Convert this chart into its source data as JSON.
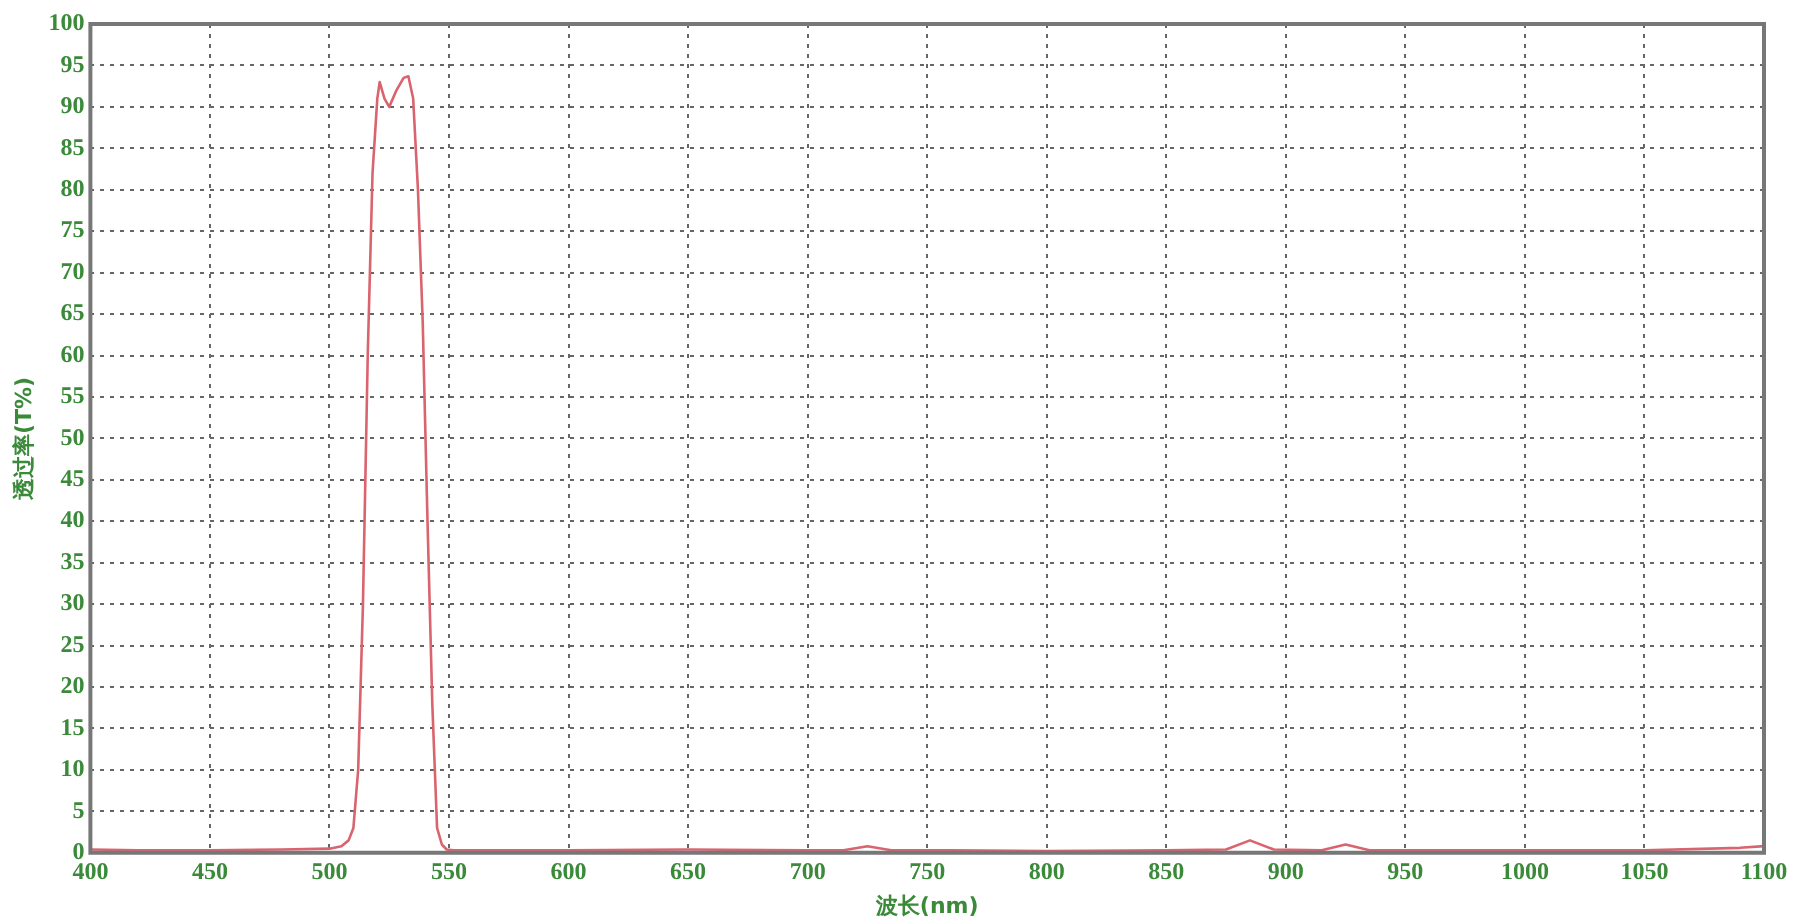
{
  "chart_data": {
    "type": "line",
    "xlabel": "波长(nm)",
    "ylabel": "透过率(T%)",
    "xlim": [
      400,
      1100
    ],
    "xticks": [
      400,
      450,
      500,
      550,
      600,
      650,
      700,
      750,
      800,
      850,
      900,
      950,
      1000,
      1050,
      1100
    ],
    "ylim": [
      0,
      100
    ],
    "yticks": [
      0,
      5,
      10,
      15,
      20,
      25,
      30,
      35,
      40,
      45,
      50,
      55,
      60,
      65,
      70,
      75,
      80,
      85,
      90,
      95,
      100
    ],
    "grid": true,
    "legend": false,
    "marker": "none",
    "line_style": "solid",
    "series": [
      {
        "color": "#d9646e",
        "x": [
          400,
          420,
          450,
          480,
          500,
          505,
          508,
          510,
          512,
          514,
          516,
          518,
          520,
          521,
          523,
          525,
          528,
          531,
          533,
          535,
          537,
          539,
          541,
          543,
          545,
          547,
          549,
          552,
          560,
          600,
          650,
          700,
          715,
          725,
          735,
          760,
          800,
          850,
          875,
          885,
          895,
          915,
          925,
          935,
          960,
          1000,
          1050,
          1090,
          1100
        ],
        "values": [
          0.4,
          0.3,
          0.3,
          0.4,
          0.5,
          0.8,
          1.5,
          3,
          10,
          30,
          60,
          82,
          91,
          93,
          91,
          90,
          92,
          93.5,
          93.7,
          91,
          80,
          64,
          40,
          18,
          3,
          1,
          0.4,
          0.3,
          0.3,
          0.3,
          0.4,
          0.3,
          0.3,
          0.8,
          0.3,
          0.3,
          0.2,
          0.3,
          0.4,
          1.5,
          0.4,
          0.3,
          1,
          0.3,
          0.3,
          0.3,
          0.3,
          0.6,
          0.8
        ]
      }
    ]
  }
}
